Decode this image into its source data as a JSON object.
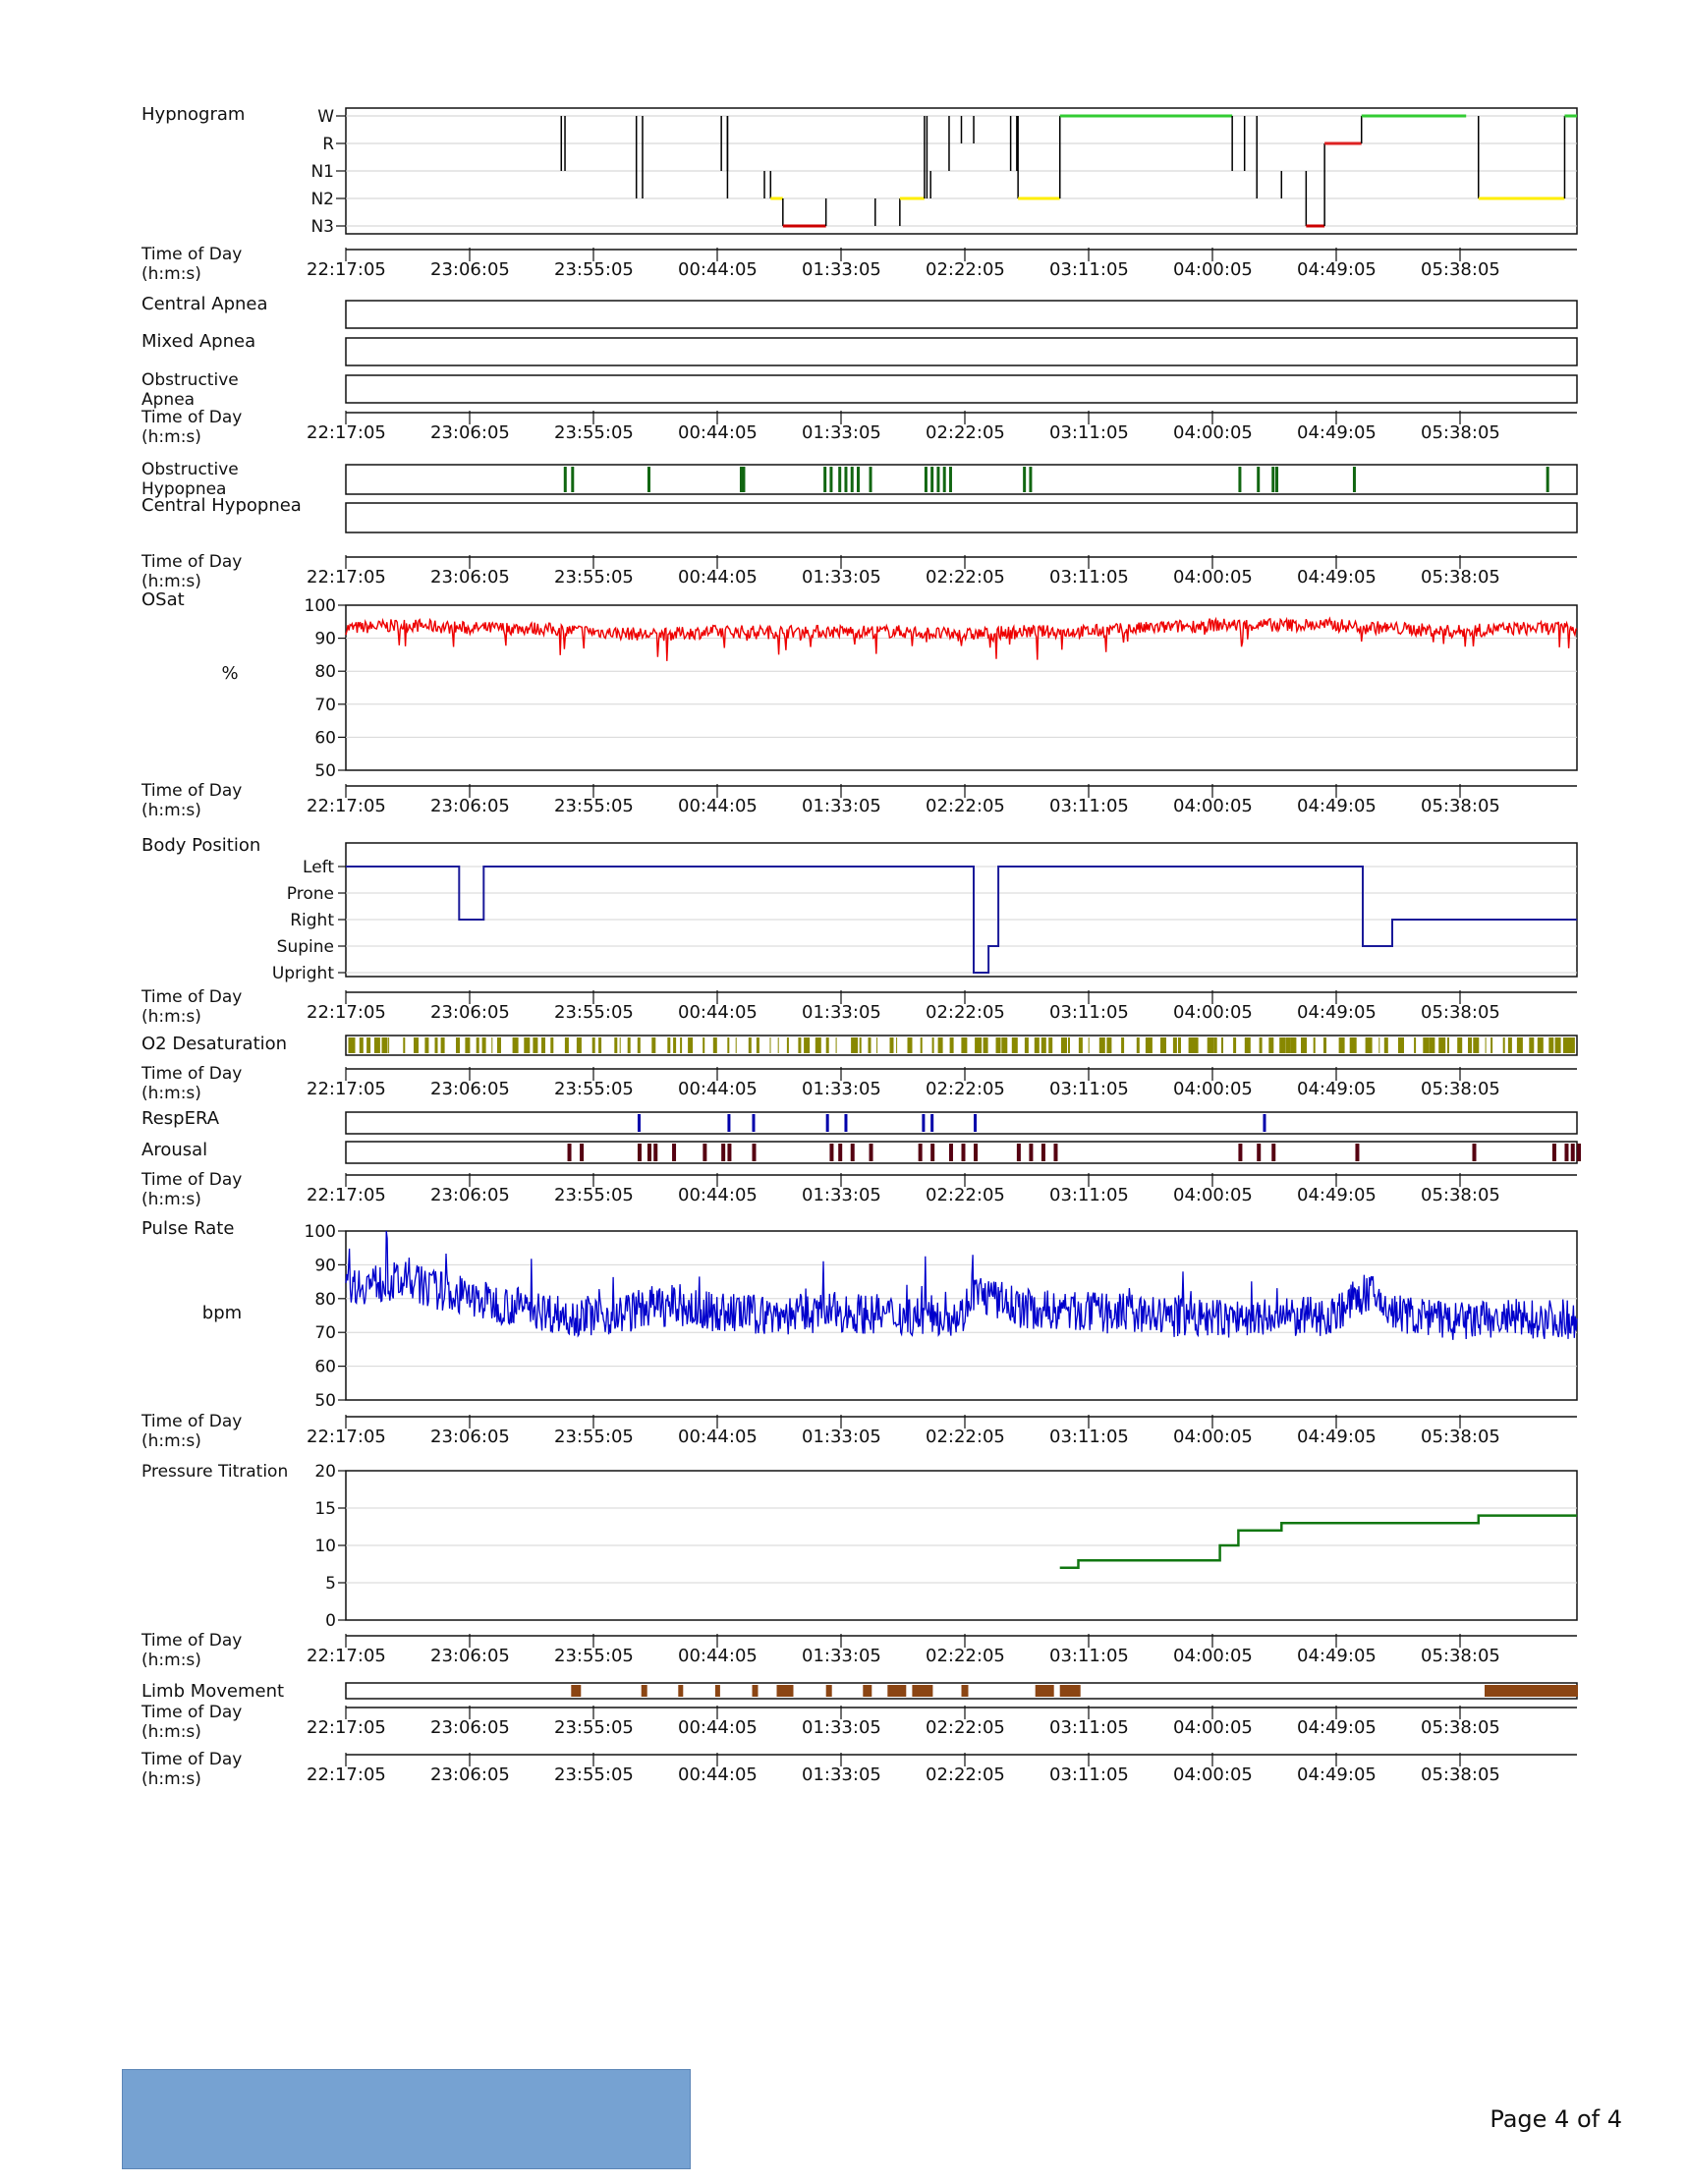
{
  "page": {
    "number_text": "Page 4 of 4"
  },
  "time_axis": {
    "label": "Time of Day (h:m:s)",
    "ticks": [
      "22:17:05",
      "23:06:05",
      "23:55:05",
      "00:44:05",
      "01:33:05",
      "02:22:05",
      "03:11:05",
      "04:00:05",
      "04:49:05",
      "05:38:05"
    ]
  },
  "colors": {
    "wake": "#33cc33",
    "rem": "#dd2222",
    "n1": "#66aaff",
    "n2": "#ffee00",
    "n3": "#cc0000",
    "spo2": "#ee0000",
    "position": "#1a1a99",
    "hypopnea": "#116611",
    "desaturation": "#888800",
    "resp_era": "#0000aa",
    "arousal": "#550011",
    "pulse": "#0000cc",
    "pressure": "#117711",
    "limb": "#8b4513",
    "footer_box": "#76a2d2"
  },
  "chart_data": [
    {
      "type": "line",
      "id": "hypnogram",
      "title": "Hypnogram",
      "yticks": [
        "W",
        "R",
        "N1",
        "N2",
        "N3"
      ],
      "series": [
        {
          "values": [
            [
              0,
              "W"
            ],
            [
              0.175,
              "N1"
            ],
            [
              0.178,
              "W"
            ],
            [
              0.236,
              "N2"
            ],
            [
              0.241,
              "W"
            ],
            [
              0.305,
              "N1"
            ],
            [
              0.31,
              "W"
            ],
            [
              0.31,
              "N2"
            ],
            [
              0.34,
              "N1"
            ],
            [
              0.345,
              "N2"
            ],
            [
              0.355,
              "N2"
            ],
            [
              0.355,
              "N3"
            ],
            [
              0.39,
              "N3"
            ],
            [
              0.39,
              "N2"
            ],
            [
              0.43,
              "N3"
            ],
            [
              0.45,
              "N2"
            ],
            [
              0.47,
              "N2"
            ],
            [
              0.47,
              "W"
            ],
            [
              0.472,
              "N2"
            ],
            [
              0.475,
              "N1"
            ],
            [
              0.49,
              "W"
            ],
            [
              0.5,
              "R"
            ],
            [
              0.51,
              "W"
            ],
            [
              0.54,
              "N1"
            ],
            [
              0.545,
              "W"
            ],
            [
              0.546,
              "N2"
            ],
            [
              0.58,
              "N2"
            ],
            [
              0.58,
              "W"
            ],
            [
              0.72,
              "W"
            ],
            [
              0.72,
              "N1"
            ],
            [
              0.73,
              "W"
            ],
            [
              0.74,
              "N2"
            ],
            [
              0.76,
              "N1"
            ],
            [
              0.78,
              "N2"
            ],
            [
              0.78,
              "N3"
            ],
            [
              0.795,
              "N3"
            ],
            [
              0.795,
              "R"
            ],
            [
              0.825,
              "R"
            ],
            [
              0.825,
              "W"
            ],
            [
              0.91,
              "W"
            ],
            [
              0.92,
              "N1"
            ],
            [
              0.92,
              "N2"
            ],
            [
              0.99,
              "N2"
            ],
            [
              0.99,
              "W"
            ],
            [
              1.0,
              "W"
            ]
          ]
        }
      ]
    },
    {
      "type": "bar",
      "id": "central-apnea",
      "title": "Central Apnea",
      "events": []
    },
    {
      "type": "bar",
      "id": "mixed-apnea",
      "title": "Mixed Apnea",
      "events": []
    },
    {
      "type": "bar",
      "id": "obstructive-apnea",
      "title": "Obstructive Apnea",
      "events": []
    },
    {
      "type": "bar",
      "id": "obstructive-hypopnea",
      "title": "Obstructive Hypopnea",
      "events": [
        0.177,
        0.183,
        0.245,
        0.32,
        0.322,
        0.388,
        0.393,
        0.4,
        0.405,
        0.41,
        0.415,
        0.425,
        0.47,
        0.475,
        0.48,
        0.485,
        0.49,
        0.55,
        0.555,
        0.725,
        0.74,
        0.752,
        0.755,
        0.818,
        0.975
      ]
    },
    {
      "type": "bar",
      "id": "central-hypopnea",
      "title": "Central Hypopnea",
      "events": []
    },
    {
      "type": "line",
      "id": "osat",
      "title": "OSat",
      "ylabel": "%",
      "ylim": [
        50,
        100
      ],
      "yticks": [
        "100",
        "90",
        "80",
        "70",
        "60",
        "50"
      ],
      "series": [
        {
          "values": [
            [
              0,
              93
            ],
            [
              0.05,
              94
            ],
            [
              0.1,
              93
            ],
            [
              0.15,
              93
            ],
            [
              0.2,
              92
            ],
            [
              0.25,
              91
            ],
            [
              0.3,
              92
            ],
            [
              0.35,
              92
            ],
            [
              0.4,
              92
            ],
            [
              0.45,
              92
            ],
            [
              0.5,
              91
            ],
            [
              0.55,
              92
            ],
            [
              0.6,
              92
            ],
            [
              0.65,
              93
            ],
            [
              0.7,
              94
            ],
            [
              0.75,
              94
            ],
            [
              0.8,
              94
            ],
            [
              0.85,
              93
            ],
            [
              0.9,
              92
            ],
            [
              0.95,
              93
            ],
            [
              1.0,
              93
            ]
          ]
        }
      ]
    },
    {
      "type": "line",
      "id": "body-position",
      "title": "Body Position",
      "yticks": [
        "Left",
        "Prone",
        "Right",
        "Supine",
        "Upright"
      ],
      "series": [
        {
          "values": [
            [
              0,
              "Left"
            ],
            [
              0.092,
              "Left"
            ],
            [
              0.092,
              "Right"
            ],
            [
              0.112,
              "Right"
            ],
            [
              0.112,
              "Left"
            ],
            [
              0.51,
              "Left"
            ],
            [
              0.51,
              "Upright"
            ],
            [
              0.522,
              "Upright"
            ],
            [
              0.522,
              "Supine"
            ],
            [
              0.53,
              "Supine"
            ],
            [
              0.53,
              "Left"
            ],
            [
              0.826,
              "Left"
            ],
            [
              0.826,
              "Supine"
            ],
            [
              0.85,
              "Supine"
            ],
            [
              0.85,
              "Right"
            ],
            [
              1.0,
              "Right"
            ]
          ]
        }
      ]
    },
    {
      "type": "bar",
      "id": "o2-desaturation",
      "title": "O2 Desaturation",
      "events": []
    },
    {
      "type": "bar",
      "id": "resp-era",
      "title": "RespERA",
      "events": [
        0.237,
        0.31,
        0.33,
        0.39,
        0.405,
        0.468,
        0.475,
        0.51,
        0.745
      ]
    },
    {
      "type": "bar",
      "id": "arousal",
      "title": "Arousal",
      "events": [
        0.18,
        0.19,
        0.237,
        0.245,
        0.25,
        0.265,
        0.29,
        0.305,
        0.31,
        0.33,
        0.393,
        0.4,
        0.41,
        0.425,
        0.465,
        0.475,
        0.49,
        0.5,
        0.51,
        0.545,
        0.555,
        0.565,
        0.575,
        0.725,
        0.74,
        0.752,
        0.82,
        0.915,
        0.98,
        0.99,
        0.995,
        1.0
      ]
    },
    {
      "type": "line",
      "id": "pulse-rate",
      "title": "Pulse Rate",
      "ylabel": "bpm",
      "ylim": [
        50,
        100
      ],
      "yticks": [
        "100",
        "90",
        "80",
        "70",
        "60",
        "50"
      ],
      "series": [
        {
          "values": [
            [
              0,
              84
            ],
            [
              0.05,
              85
            ],
            [
              0.08,
              82
            ],
            [
              0.1,
              80
            ],
            [
              0.15,
              77
            ],
            [
              0.18,
              75
            ],
            [
              0.22,
              75
            ],
            [
              0.25,
              78
            ],
            [
              0.3,
              76
            ],
            [
              0.35,
              75
            ],
            [
              0.4,
              76
            ],
            [
              0.45,
              75
            ],
            [
              0.5,
              75
            ],
            [
              0.51,
              82
            ],
            [
              0.55,
              77
            ],
            [
              0.6,
              76
            ],
            [
              0.65,
              75
            ],
            [
              0.7,
              74
            ],
            [
              0.75,
              74
            ],
            [
              0.8,
              75
            ],
            [
              0.83,
              82
            ],
            [
              0.85,
              76
            ],
            [
              0.9,
              73
            ],
            [
              0.95,
              74
            ],
            [
              1.0,
              74
            ]
          ]
        }
      ]
    },
    {
      "type": "line",
      "id": "pressure-titration",
      "title": "Pressure Titration",
      "ylim": [
        0,
        20
      ],
      "yticks": [
        "20",
        "15",
        "10",
        "5",
        "0"
      ],
      "series": [
        {
          "values": [
            [
              0.58,
              7
            ],
            [
              0.595,
              7
            ],
            [
              0.595,
              8
            ],
            [
              0.71,
              8
            ],
            [
              0.71,
              10
            ],
            [
              0.725,
              10
            ],
            [
              0.725,
              12
            ],
            [
              0.76,
              12
            ],
            [
              0.76,
              13
            ],
            [
              0.92,
              13
            ],
            [
              0.92,
              14
            ],
            [
              1.0,
              14
            ]
          ]
        }
      ]
    },
    {
      "type": "bar",
      "id": "limb-movement",
      "title": "Limb Movement",
      "events": [
        0.183,
        0.24,
        0.27,
        0.3,
        0.33,
        0.35,
        0.39,
        0.42,
        0.44,
        0.46,
        0.5,
        0.56,
        0.58,
        0.925,
        0.94,
        0.96,
        0.99
      ]
    }
  ]
}
